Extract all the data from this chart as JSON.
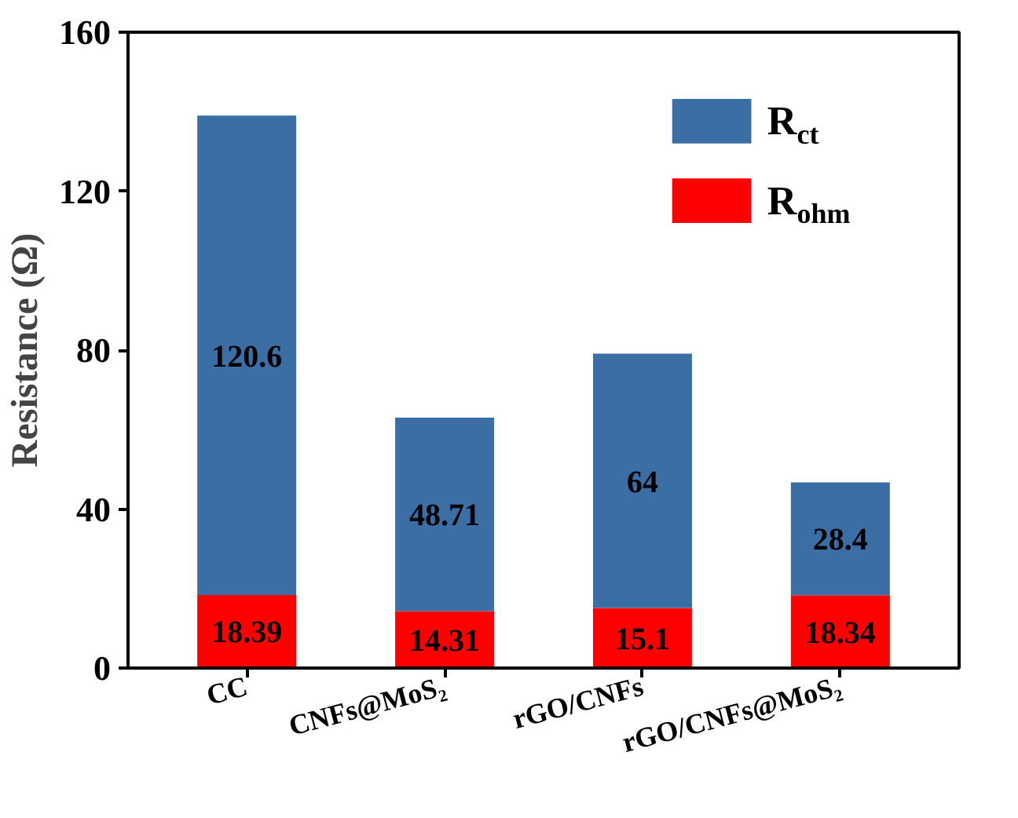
{
  "chart_data": {
    "type": "bar",
    "stacked": true,
    "ylabel": "Resistance (Ω)",
    "categories": [
      "CC",
      "CNFs@MoS₂",
      "rGO/CNFs",
      "rGO/CNFs@MoS₂"
    ],
    "series": [
      {
        "name": "R$_{ohm}$",
        "color": "#ff0000",
        "values": [
          18.39,
          14.31,
          15.1,
          18.34
        ]
      },
      {
        "name": "R$_{ct}$",
        "color": "#3a6ea5",
        "values": [
          120.6,
          48.71,
          64,
          28.4
        ]
      }
    ],
    "ylim": [
      0,
      160
    ],
    "yticks": [
      0,
      40,
      80,
      120,
      160
    ],
    "data_labels": true,
    "legend": "top right",
    "grid": false
  }
}
